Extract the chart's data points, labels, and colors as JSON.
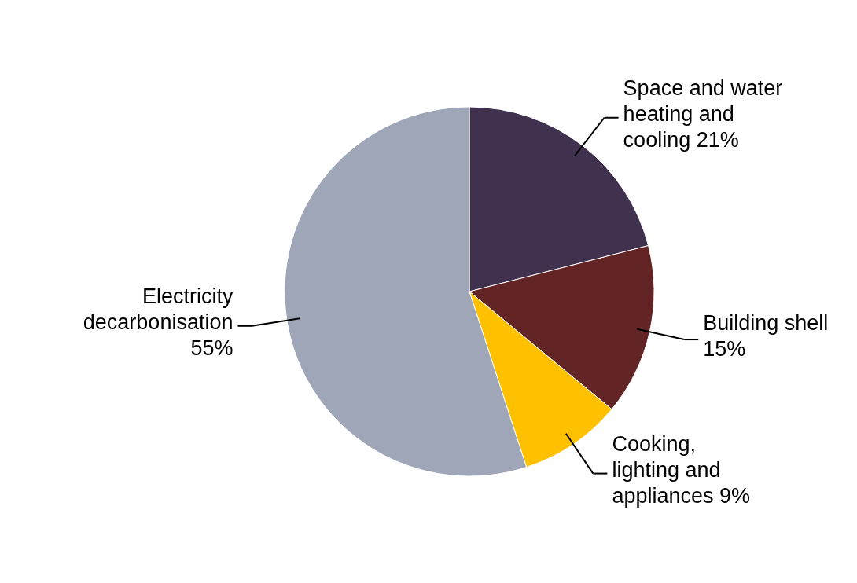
{
  "chart_data": {
    "type": "pie",
    "categories": [
      "Space and water heating and cooling",
      "Building shell",
      "Cooking, lighting and appliances",
      "Electricity decarbonisation"
    ],
    "values": [
      21,
      15,
      9,
      55
    ],
    "value_labels": [
      "21%",
      "15%",
      "9%",
      "55%"
    ],
    "colors": [
      "#40314f",
      "#622424",
      "#ffc000",
      "#9ea6b8"
    ]
  }
}
